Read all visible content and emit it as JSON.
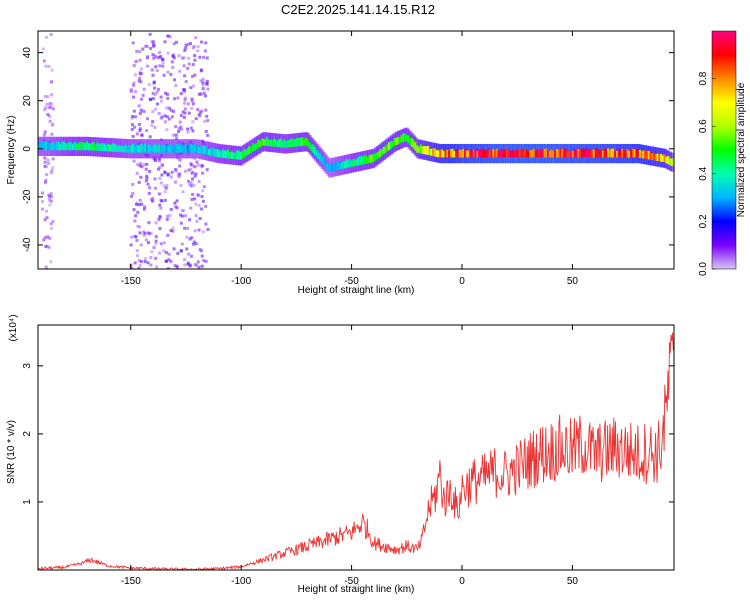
{
  "title": "C2E2.2025.141.14.15.R12",
  "chart_data": [
    {
      "type": "heatmap",
      "xlabel": "Height of straight line (km)",
      "ylabel": "Frequency (Hz)",
      "xlim": [
        -192,
        96
      ],
      "ylim": [
        -50,
        49
      ],
      "xticks": [
        -150,
        -100,
        -50,
        0,
        50
      ],
      "yticks": [
        -40,
        -20,
        0,
        20,
        40
      ],
      "colorbar": {
        "label": "Normalized spectral amplitude",
        "range": [
          0,
          1
        ],
        "ticks": [
          0.0,
          0.2,
          0.4,
          0.6,
          0.8
        ],
        "tick_labels": [
          "0.0",
          "0.2",
          "0.4",
          "0.6",
          "0.8"
        ],
        "colormap": [
          "#d9c6f2",
          "#7a00ff",
          "#0000ff",
          "#00b4ff",
          "#00ffb0",
          "#00ff00",
          "#b4ff00",
          "#ffff00",
          "#ff8800",
          "#ff0000",
          "#ff0080"
        ]
      },
      "ridge": {
        "description_points_x": [
          -192,
          -170,
          -150,
          -120,
          -110,
          -100,
          -90,
          -80,
          -70,
          -60,
          -50,
          -40,
          -30,
          -25,
          -20,
          -10,
          0,
          20,
          40,
          60,
          80,
          92,
          96
        ],
        "description_points_y": [
          1,
          1,
          0,
          0,
          -2,
          -3,
          3,
          2,
          3,
          -8,
          -6,
          -4,
          3,
          5,
          0,
          -2,
          -2,
          -2,
          -2,
          -2,
          -2,
          -4,
          -6
        ],
        "strength": [
          0.3,
          0.45,
          0.35,
          0.3,
          0.4,
          0.45,
          0.5,
          0.4,
          0.5,
          0.3,
          0.4,
          0.5,
          0.55,
          0.45,
          0.55,
          0.75,
          0.85,
          0.9,
          0.9,
          0.88,
          0.82,
          0.7,
          0.5
        ]
      },
      "noise_bands": [
        {
          "x": [
            -190,
            -185
          ],
          "y": [
            -50,
            48
          ],
          "strength": 0.08
        },
        {
          "x": [
            -150,
            -115
          ],
          "y": [
            -50,
            48
          ],
          "strength": 0.12
        }
      ]
    },
    {
      "type": "line",
      "xlabel": "Height of straight line (km)",
      "ylabel": "SNR (10 * v/v)",
      "scale_label": "(x10⁴)",
      "xlim": [
        -192,
        96
      ],
      "ylim": [
        0,
        3.6
      ],
      "xticks": [
        -150,
        -100,
        -50,
        0,
        50
      ],
      "yticks": [
        1,
        2,
        3
      ],
      "color": "#ee3333",
      "series": [
        {
          "name": "",
          "x": [
            -192,
            -180,
            -172,
            -168,
            -160,
            -150,
            -140,
            -130,
            -120,
            -110,
            -100,
            -95,
            -90,
            -85,
            -80,
            -75,
            -70,
            -65,
            -60,
            -55,
            -50,
            -45,
            -42,
            -40,
            -35,
            -30,
            -25,
            -20,
            -18,
            -15,
            -12,
            -10,
            -8,
            -5,
            -2,
            0,
            5,
            10,
            15,
            20,
            25,
            30,
            35,
            40,
            45,
            50,
            55,
            60,
            65,
            70,
            75,
            80,
            85,
            88,
            90,
            92,
            94,
            96
          ],
          "y": [
            0.02,
            0.04,
            0.1,
            0.15,
            0.06,
            0.03,
            0.02,
            0.01,
            0.01,
            0.02,
            0.05,
            0.1,
            0.15,
            0.2,
            0.25,
            0.3,
            0.35,
            0.4,
            0.45,
            0.5,
            0.55,
            0.7,
            0.55,
            0.4,
            0.35,
            0.3,
            0.35,
            0.3,
            0.45,
            0.9,
            1.1,
            1.4,
            1.0,
            1.2,
            0.85,
            1.2,
            1.3,
            1.35,
            1.45,
            1.4,
            1.5,
            1.6,
            1.7,
            1.75,
            1.8,
            1.75,
            1.85,
            1.7,
            1.75,
            1.8,
            1.75,
            1.7,
            1.75,
            1.7,
            1.8,
            2.2,
            2.8,
            3.0
          ]
        }
      ]
    }
  ]
}
